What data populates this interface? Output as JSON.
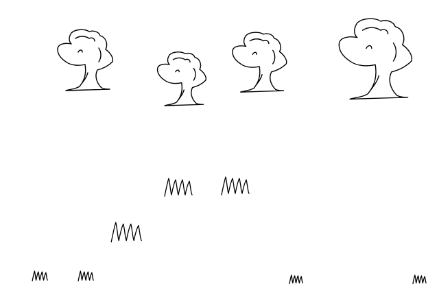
{
  "scene": {
    "background": "#ffffff",
    "stroke_color": "#000000",
    "style": "hand-drawn line sketch",
    "trees": [
      {
        "name": "tree-1"
      },
      {
        "name": "tree-2"
      },
      {
        "name": "tree-3"
      },
      {
        "name": "tree-4"
      }
    ],
    "grass_tufts": [
      {
        "name": "grass-tuft-1"
      },
      {
        "name": "grass-tuft-2"
      },
      {
        "name": "grass-tuft-3"
      },
      {
        "name": "grass-tuft-4"
      },
      {
        "name": "grass-tuft-5"
      },
      {
        "name": "grass-tuft-6"
      },
      {
        "name": "grass-tuft-7"
      }
    ]
  }
}
